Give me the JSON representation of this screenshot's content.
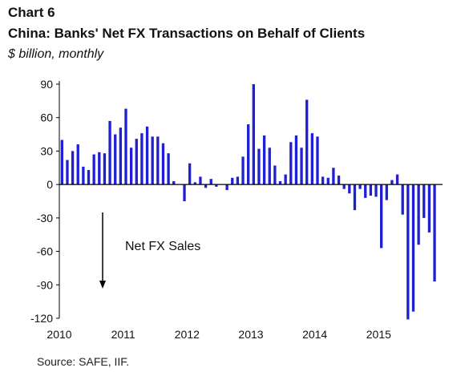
{
  "header": {
    "label": "Chart 6",
    "title": "China: Banks' Net FX Transactions on Behalf of Clients",
    "subtitle": "$ billion, monthly"
  },
  "source": "Source: SAFE, IIF.",
  "chart_data": {
    "type": "bar",
    "color": "#1f1fd6",
    "ylim": [
      -120,
      90
    ],
    "yticks": [
      90,
      60,
      30,
      0,
      -30,
      -60,
      -90,
      -120
    ],
    "xtick_labels": [
      "2010",
      "2011",
      "2012",
      "2013",
      "2014",
      "2015"
    ],
    "annotation": {
      "text": "Net FX Sales",
      "arrow": "down"
    },
    "grid": false,
    "categories": [
      "2010-01",
      "2010-02",
      "2010-03",
      "2010-04",
      "2010-05",
      "2010-06",
      "2010-07",
      "2010-08",
      "2010-09",
      "2010-10",
      "2010-11",
      "2010-12",
      "2011-01",
      "2011-02",
      "2011-03",
      "2011-04",
      "2011-05",
      "2011-06",
      "2011-07",
      "2011-08",
      "2011-09",
      "2011-10",
      "2011-11",
      "2011-12",
      "2012-01",
      "2012-02",
      "2012-03",
      "2012-04",
      "2012-05",
      "2012-06",
      "2012-07",
      "2012-08",
      "2012-09",
      "2012-10",
      "2012-11",
      "2012-12",
      "2013-01",
      "2013-02",
      "2013-03",
      "2013-04",
      "2013-05",
      "2013-06",
      "2013-07",
      "2013-08",
      "2013-09",
      "2013-10",
      "2013-11",
      "2013-12",
      "2014-01",
      "2014-02",
      "2014-03",
      "2014-04",
      "2014-05",
      "2014-06",
      "2014-07",
      "2014-08",
      "2014-09",
      "2014-10",
      "2014-11",
      "2014-12",
      "2015-01",
      "2015-02",
      "2015-03",
      "2015-04",
      "2015-05",
      "2015-06",
      "2015-07",
      "2015-08",
      "2015-09",
      "2015-10",
      "2015-11",
      "2015-12"
    ],
    "values": [
      40,
      22,
      30,
      36,
      16,
      13,
      27,
      29,
      28,
      57,
      45,
      51,
      68,
      33,
      41,
      46,
      52,
      43,
      43,
      37,
      28,
      3,
      0,
      -15,
      19,
      2,
      7,
      -3,
      5,
      -2,
      0,
      -5,
      6,
      7,
      25,
      54,
      90,
      32,
      44,
      33,
      17,
      3,
      9,
      38,
      44,
      33,
      76,
      46,
      43,
      7,
      6,
      15,
      8,
      -4,
      -8,
      -23,
      -4,
      -12,
      -10,
      -11,
      -57,
      -14,
      4,
      9,
      -27,
      -121,
      -114,
      -54,
      -30,
      -43,
      -87,
      0
    ]
  }
}
